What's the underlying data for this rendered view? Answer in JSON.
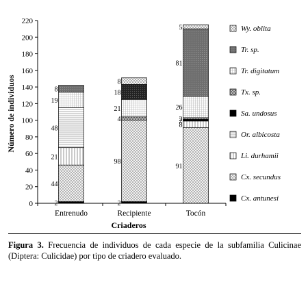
{
  "chart_data": {
    "type": "bar",
    "stacked": true,
    "categories": [
      "Entrenudo",
      "Recipiente",
      "Tocón"
    ],
    "xlabel": "Criaderos",
    "ylabel": "Número de individuos",
    "ylim": [
      0,
      220
    ],
    "yticks": [
      0,
      20,
      40,
      60,
      80,
      100,
      120,
      140,
      160,
      180,
      200,
      220
    ],
    "legend_position": "right",
    "series": [
      {
        "name": "Cx. antunesi",
        "values": [
          2,
          2,
          0
        ],
        "labels": [
          "2",
          "2",
          ""
        ],
        "pattern": "solid"
      },
      {
        "name": "Cx. secundus",
        "values": [
          44,
          98,
          91
        ],
        "labels": [
          "44",
          "98",
          "91"
        ],
        "pattern": "crosshatch"
      },
      {
        "name": "Li. durhamii",
        "values": [
          21,
          0,
          8
        ],
        "labels": [
          "21",
          "",
          "8"
        ],
        "pattern": "vertical"
      },
      {
        "name": "Or. albicosta",
        "values": [
          48,
          0,
          0
        ],
        "labels": [
          "48",
          "",
          ""
        ],
        "pattern": "horizontal"
      },
      {
        "name": "Sa. undosus",
        "values": [
          0,
          0,
          2
        ],
        "labels": [
          "",
          "",
          "2"
        ],
        "pattern": "solid"
      },
      {
        "name": "Tx. sp.",
        "values": [
          0,
          4,
          2
        ],
        "labels": [
          "",
          "4",
          "2"
        ],
        "pattern": "grid"
      },
      {
        "name": "Tr. digitatum",
        "values": [
          19,
          21,
          26
        ],
        "labels": [
          "19",
          "21",
          "26"
        ],
        "pattern": "fine-grid"
      },
      {
        "name": "Tr. sp.",
        "values": [
          8,
          18,
          81
        ],
        "labels": [
          "8",
          "18",
          "81"
        ],
        "pattern": "dark-dots"
      },
      {
        "name": "Wy. oblita",
        "values": [
          0,
          8,
          5
        ],
        "labels": [
          "",
          "8",
          "5"
        ],
        "pattern": "diamond"
      }
    ],
    "legend_order": [
      "Wy. oblita",
      "Tr. sp.",
      "Tr. digitatum",
      "Tx. sp.",
      "Sa. undosus",
      "Or. albicosta",
      "Li. durhamii",
      "Cx. secundus",
      "Cx. antunesi"
    ]
  },
  "caption": {
    "label": "Figura 3.",
    "text": "Frecuencia de individuos de cada especie de la subfamilia Culicinae (Diptera: Culicidae) por tipo de criadero evaluado."
  }
}
